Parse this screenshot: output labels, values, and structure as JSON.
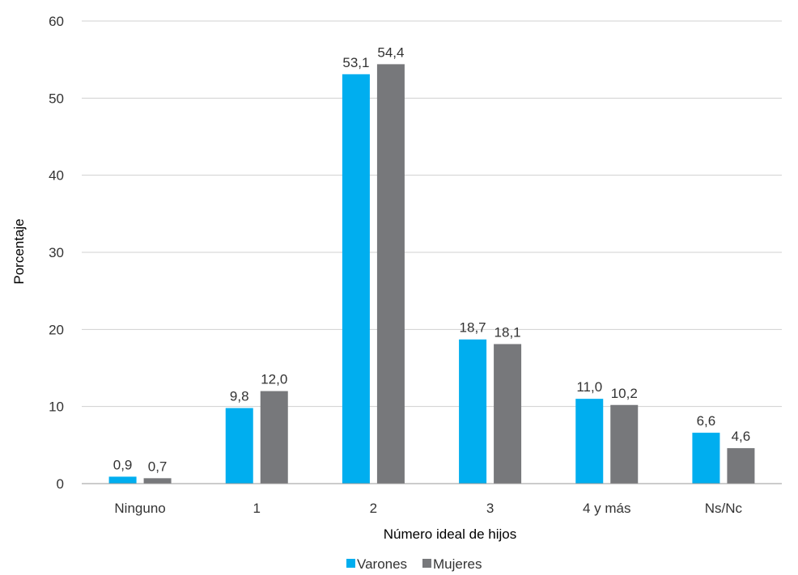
{
  "chart_data": {
    "type": "bar",
    "categories": [
      "Ninguno",
      "1",
      "2",
      "3",
      "4 y más",
      "Ns/Nc"
    ],
    "series": [
      {
        "name": "Varones",
        "color": "#00AEEF",
        "values": [
          0.9,
          9.8,
          53.1,
          18.7,
          11.0,
          6.6
        ],
        "labels": [
          "0,9",
          "9,8",
          "53,1",
          "18,7",
          "11,0",
          "6,6"
        ]
      },
      {
        "name": "Mujeres",
        "color": "#77787B",
        "values": [
          0.7,
          12.0,
          54.4,
          18.1,
          10.2,
          4.6
        ],
        "labels": [
          "0,7",
          "12,0",
          "54,4",
          "18,1",
          "10,2",
          "4,6"
        ]
      }
    ],
    "xlabel": "Número ideal de hijos",
    "ylabel": "Porcentaje",
    "ylim": [
      0,
      60
    ],
    "yticks": [
      0,
      10,
      20,
      30,
      40,
      50,
      60
    ],
    "grid": true,
    "legend_position": "bottom"
  }
}
